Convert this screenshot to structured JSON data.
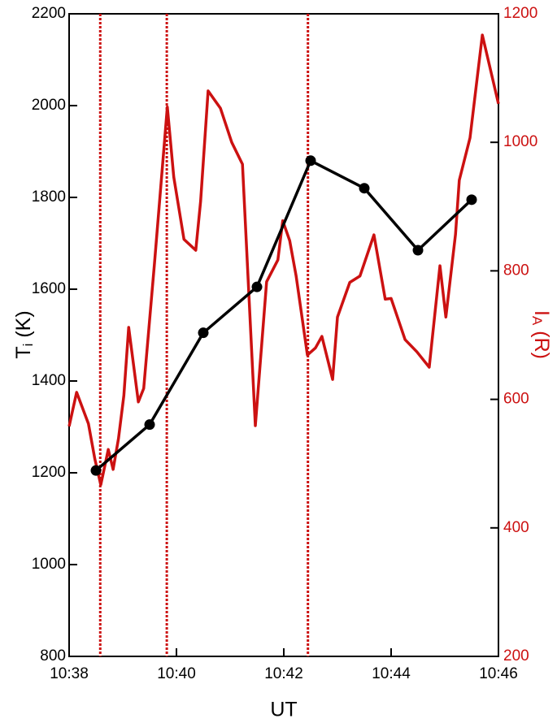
{
  "chart_data": {
    "type": "line",
    "xlabel": "UT",
    "ylabel": [
      "T",
      "i",
      " (K)"
    ],
    "y2label": [
      "I",
      "A",
      " (R)"
    ],
    "xlim": [
      38,
      46
    ],
    "xticks": [
      {
        "value": 38,
        "label": "10:38"
      },
      {
        "value": 40,
        "label": "10:40"
      },
      {
        "value": 42,
        "label": "10:42"
      },
      {
        "value": 44,
        "label": "10:44"
      },
      {
        "value": 46,
        "label": "10:46"
      }
    ],
    "ylim": [
      800,
      2200
    ],
    "yticks": [
      800,
      1000,
      1200,
      1400,
      1600,
      1800,
      2000,
      2200
    ],
    "y2lim": [
      200,
      1200
    ],
    "y2ticks": [
      200,
      400,
      600,
      800,
      1000,
      1200
    ],
    "y2color": "#cc1111",
    "reference_lines": {
      "color": "#cc1111",
      "x": [
        38.58,
        39.82,
        42.45
      ]
    },
    "series": [
      {
        "color": "#cc1111",
        "axis": "y2",
        "marker": false,
        "x": [
          38,
          38.14,
          38.36,
          38.48,
          38.59,
          38.73,
          38.82,
          38.92,
          39.02,
          39.11,
          39.29,
          39.39,
          39.59,
          39.83,
          39.95,
          40.14,
          40.36,
          40.45,
          40.59,
          40.82,
          41.03,
          41.23,
          41.47,
          41.68,
          41.89,
          41.98,
          42.11,
          42.23,
          42.44,
          42.59,
          42.71,
          42.91,
          43.0,
          43.23,
          43.42,
          43.68,
          43.89,
          44.0,
          44.26,
          44.48,
          44.71,
          44.91,
          45.02,
          45.2,
          45.27,
          45.47,
          45.7,
          46.0
        ],
        "values": [
          558,
          611,
          562,
          507,
          467,
          522,
          491,
          539,
          606,
          712,
          596,
          617,
          811,
          1055,
          946,
          849,
          832,
          908,
          1080,
          1053,
          1000,
          966,
          559,
          783,
          817,
          878,
          847,
          792,
          669,
          680,
          698,
          631,
          728,
          782,
          792,
          856,
          756,
          757,
          693,
          674,
          650,
          808,
          728,
          857,
          941,
          1007,
          1167,
          1060
        ]
      },
      {
        "color": "#000000",
        "axis": "y",
        "marker": true,
        "x": [
          38.5,
          39.5,
          40.5,
          41.5,
          42.5,
          43.5,
          44.5,
          45.5
        ],
        "values": [
          1205,
          1305,
          1505,
          1605,
          1880,
          1820,
          1685,
          1795
        ]
      }
    ]
  }
}
